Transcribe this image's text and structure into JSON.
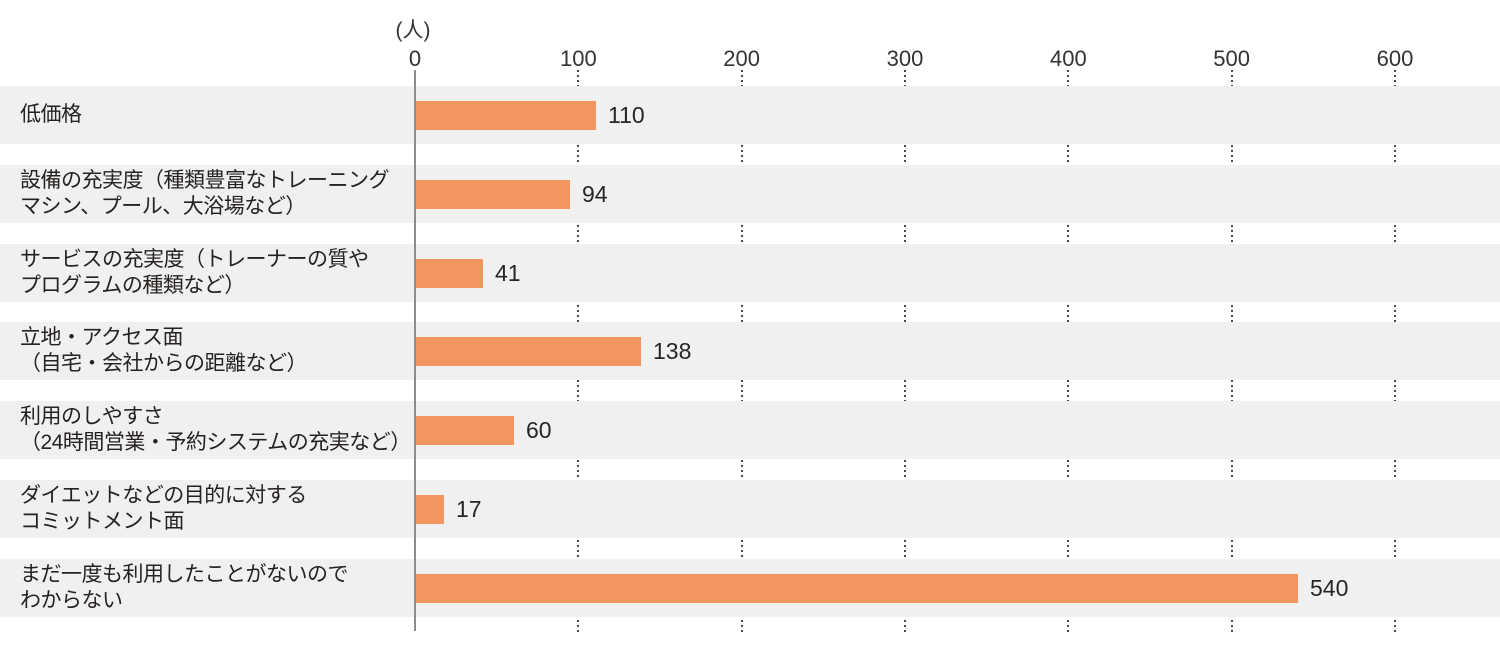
{
  "chart_data": {
    "type": "bar",
    "orientation": "horizontal",
    "title": "",
    "unit_label": "(人)",
    "categories": [
      "低価格",
      "設備の充実度（種類豊富なトレーニング\nマシン、プール、大浴場など）",
      "サービスの充実度（トレーナーの質や\nプログラムの種類など）",
      "立地・アクセス面\n（自宅・会社からの距離など）",
      "利用のしやすさ\n（24時間営業・予約システムの充実など）",
      "ダイエットなどの目的に対する\nコミットメント面",
      "まだ一度も利用したことがないので\nわからない"
    ],
    "values": [
      110,
      94,
      41,
      138,
      60,
      17,
      540
    ],
    "value_labels": [
      "110",
      "94",
      "41",
      "138",
      "60",
      "17",
      "540"
    ],
    "x_ticks": [
      0,
      100,
      200,
      300,
      400,
      500,
      600
    ],
    "xlim": [
      0,
      660
    ],
    "grid": "dotted-vertical-between-rows",
    "legend": "none",
    "colors": {
      "bar": "#F0965E",
      "row_band": "#F0F0F0",
      "axis_line": "#8C8C8C",
      "grid_dots": "#4A4A4A",
      "value_text": "#262626",
      "category_text": "#262220",
      "tick_text": "#333333",
      "background": "#FFFFFF"
    }
  }
}
